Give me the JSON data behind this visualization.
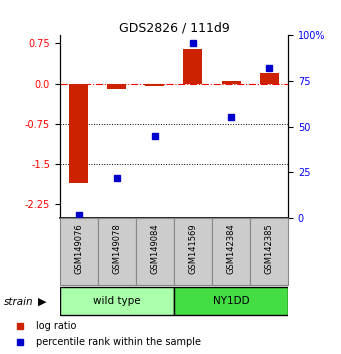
{
  "title": "GDS2826 / 111d9",
  "samples": [
    "GSM149076",
    "GSM149078",
    "GSM149084",
    "GSM141569",
    "GSM142384",
    "GSM142385"
  ],
  "log_ratios": [
    -1.85,
    -0.1,
    -0.05,
    0.65,
    0.05,
    0.2
  ],
  "percentile_ranks": [
    1.5,
    22.0,
    45.0,
    96.0,
    55.0,
    82.0
  ],
  "groups": [
    {
      "label": "wild type",
      "start": 0,
      "end": 3,
      "color": "#aaffaa"
    },
    {
      "label": "NY1DD",
      "start": 3,
      "end": 6,
      "color": "#44dd44"
    }
  ],
  "strain_label": "strain",
  "ylim_left": [
    -2.5,
    0.9
  ],
  "yticks_left": [
    0.75,
    0.0,
    -0.75,
    -1.5,
    -2.25
  ],
  "yticks_right": [
    100,
    75,
    50,
    25,
    0
  ],
  "bar_color_red": "#cc2200",
  "bar_color_blue": "#0000cc",
  "legend_items": [
    {
      "label": "log ratio",
      "color": "#cc2200"
    },
    {
      "label": "percentile rank within the sample",
      "color": "#0000cc"
    }
  ],
  "background_color": "#ffffff",
  "bar_width": 0.5,
  "sample_cell_color": "#cccccc",
  "sample_cell_border": "#888888"
}
